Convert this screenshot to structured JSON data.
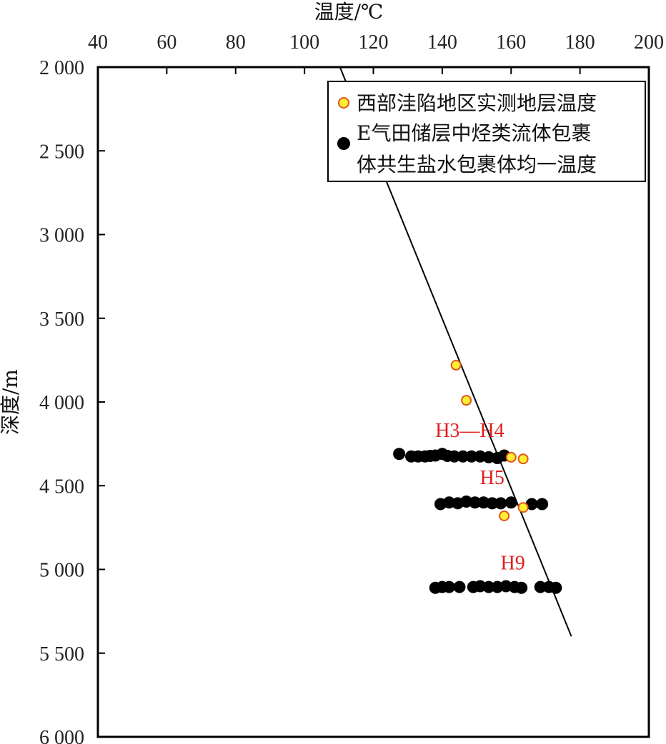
{
  "chart_data": {
    "type": "scatter",
    "xlabel": "温度/℃",
    "ylabel": "深度/m",
    "xlim": [
      40,
      200
    ],
    "ylim": [
      2000,
      6000
    ],
    "y_inverted": true,
    "x_axis_position": "top",
    "x_ticks": [
      40,
      60,
      80,
      100,
      120,
      140,
      160,
      180,
      200
    ],
    "x_tick_labels": [
      "40",
      "60",
      "80",
      "100",
      "120",
      "140",
      "160",
      "180",
      "200"
    ],
    "y_ticks": [
      2000,
      2500,
      3000,
      3500,
      4000,
      4500,
      5000,
      5500,
      6000
    ],
    "y_tick_labels": [
      "2 000",
      "2 500",
      "3 000",
      "3 500",
      "4 000",
      "4 500",
      "5 000",
      "5 500",
      "6 000"
    ],
    "legend_position": "top-right",
    "series": [
      {
        "name": "西部洼陷地区实测地层温度",
        "marker": "circle",
        "fill": "#ffee33",
        "stroke": "#e0551a",
        "points": [
          {
            "x": 144,
            "y": 3780
          },
          {
            "x": 147,
            "y": 3990
          },
          {
            "x": 160,
            "y": 4330
          },
          {
            "x": 163.5,
            "y": 4340
          },
          {
            "x": 163.5,
            "y": 4630
          },
          {
            "x": 158,
            "y": 4680
          }
        ]
      },
      {
        "name": "E气田储层中烃类流体包裹体共生盐水包裹体均一温度",
        "marker": "circle",
        "fill": "#000000",
        "stroke": "#000000",
        "points": [
          {
            "x": 127.5,
            "y": 4310
          },
          {
            "x": 131,
            "y": 4325
          },
          {
            "x": 133,
            "y": 4325
          },
          {
            "x": 135,
            "y": 4325
          },
          {
            "x": 136.5,
            "y": 4322
          },
          {
            "x": 138,
            "y": 4320
          },
          {
            "x": 140,
            "y": 4310
          },
          {
            "x": 141.5,
            "y": 4322
          },
          {
            "x": 143.5,
            "y": 4325
          },
          {
            "x": 146,
            "y": 4325
          },
          {
            "x": 148.5,
            "y": 4325
          },
          {
            "x": 151,
            "y": 4325
          },
          {
            "x": 153.5,
            "y": 4330
          },
          {
            "x": 156,
            "y": 4335
          },
          {
            "x": 158,
            "y": 4320
          },
          {
            "x": 139.5,
            "y": 4610
          },
          {
            "x": 142,
            "y": 4600
          },
          {
            "x": 144.5,
            "y": 4605
          },
          {
            "x": 147,
            "y": 4595
          },
          {
            "x": 149.5,
            "y": 4600
          },
          {
            "x": 152,
            "y": 4600
          },
          {
            "x": 154.5,
            "y": 4605
          },
          {
            "x": 157,
            "y": 4605
          },
          {
            "x": 160,
            "y": 4600
          },
          {
            "x": 166,
            "y": 4610
          },
          {
            "x": 169,
            "y": 4610
          },
          {
            "x": 138,
            "y": 5110
          },
          {
            "x": 140,
            "y": 5105
          },
          {
            "x": 142,
            "y": 5105
          },
          {
            "x": 145,
            "y": 5105
          },
          {
            "x": 149,
            "y": 5105
          },
          {
            "x": 151,
            "y": 5100
          },
          {
            "x": 153.5,
            "y": 5105
          },
          {
            "x": 156,
            "y": 5105
          },
          {
            "x": 158.5,
            "y": 5100
          },
          {
            "x": 161,
            "y": 5105
          },
          {
            "x": 163,
            "y": 5110
          },
          {
            "x": 168.5,
            "y": 5105
          },
          {
            "x": 171,
            "y": 5105
          },
          {
            "x": 173,
            "y": 5110
          }
        ]
      }
    ],
    "trend_line": {
      "x": [
        110.3,
        177.5
      ],
      "y": [
        2000,
        5400
      ]
    },
    "annotations": [
      {
        "text": "H3—H4",
        "x": 148,
        "y": 4210,
        "color": "#e01e1e"
      },
      {
        "text": "H5",
        "x": 154.5,
        "y": 4490,
        "color": "#e01e1e"
      },
      {
        "text": "H9",
        "x": 160.5,
        "y": 5000,
        "color": "#e01e1e"
      }
    ],
    "legend": {
      "items": [
        {
          "lines": [
            "西部洼陷地区实测地层温度"
          ],
          "series_index": 0
        },
        {
          "lines": [
            "E气田储层中烃类流体包裹",
            "体共生盐水包裹体均一温度"
          ],
          "series_index": 1
        }
      ]
    }
  }
}
